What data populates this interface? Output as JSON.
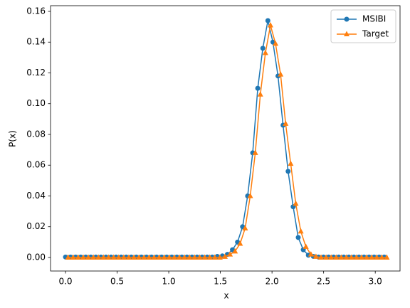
{
  "chart_data": {
    "type": "line",
    "xlabel": "x",
    "ylabel": "P(x)",
    "xlim": [
      -0.145,
      3.24
    ],
    "ylim": [
      -0.0088,
      0.1637
    ],
    "xticks": [
      {
        "value": 0,
        "label": "0.0"
      },
      0.5,
      {
        "value": 1,
        "label": "1.0"
      },
      1.5,
      {
        "value": 2,
        "label": "2.0"
      },
      2.5,
      {
        "value": 3,
        "label": "3.0"
      }
    ],
    "yticks": [
      {
        "value": 0,
        "label": "0.00"
      },
      0.02,
      0.04,
      0.06,
      0.08,
      {
        "value": 0.1,
        "label": "0.10"
      },
      0.12,
      0.14,
      0.16
    ],
    "legend": "upper right",
    "series": [
      {
        "name": "MSIBI",
        "color": "#1f77b4",
        "marker": "circle",
        "x": [
          0,
          0.049,
          0.098,
          0.147,
          0.196,
          0.245,
          0.294,
          0.343,
          0.392,
          0.441,
          0.49,
          0.539,
          0.588,
          0.637,
          0.686,
          0.735,
          0.784,
          0.833,
          0.882,
          0.931,
          0.98,
          1.029,
          1.078,
          1.127,
          1.176,
          1.225,
          1.274,
          1.323,
          1.372,
          1.421,
          1.47,
          1.519,
          1.568,
          1.617,
          1.666,
          1.715,
          1.764,
          1.813,
          1.862,
          1.911,
          1.96,
          2.009,
          2.058,
          2.107,
          2.156,
          2.205,
          2.254,
          2.303,
          2.352,
          2.401,
          2.45,
          2.499,
          2.548,
          2.597,
          2.646,
          2.695,
          2.744,
          2.793,
          2.842,
          2.891,
          2.94,
          2.989,
          3.038,
          3.087
        ],
        "values": [
          0.0003,
          0.0003,
          0.0003,
          0.0003,
          0.0003,
          0.0003,
          0.0003,
          0.0003,
          0.0003,
          0.0003,
          0.0003,
          0.0003,
          0.0003,
          0.0003,
          0.0003,
          0.0003,
          0.0003,
          0.0003,
          0.0003,
          0.0003,
          0.0003,
          0.0003,
          0.0003,
          0.0003,
          0.0003,
          0.0003,
          0.0003,
          0.0003,
          0.0003,
          0.0003,
          0.0007,
          0.001,
          0.002,
          0.005,
          0.01,
          0.02,
          0.04,
          0.068,
          0.11,
          0.136,
          0.154,
          0.14,
          0.118,
          0.086,
          0.056,
          0.033,
          0.013,
          0.005,
          0.0015,
          0.0007,
          0.0003,
          0.0003,
          0.0003,
          0.0003,
          0.0003,
          0.0003,
          0.0003,
          0.0003,
          0.0003,
          0.0003,
          0.0003,
          0.0003,
          0.0003,
          0.0003
        ]
      },
      {
        "name": "Target",
        "color": "#ff7f0e",
        "marker": "triangle",
        "x": [
          0.025,
          0.074,
          0.123,
          0.172,
          0.221,
          0.27,
          0.319,
          0.368,
          0.417,
          0.466,
          0.515,
          0.564,
          0.613,
          0.662,
          0.711,
          0.76,
          0.809,
          0.858,
          0.907,
          0.956,
          1.005,
          1.054,
          1.103,
          1.152,
          1.201,
          1.25,
          1.299,
          1.348,
          1.397,
          1.446,
          1.495,
          1.544,
          1.593,
          1.642,
          1.691,
          1.74,
          1.789,
          1.838,
          1.887,
          1.936,
          1.985,
          2.034,
          2.083,
          2.132,
          2.181,
          2.23,
          2.279,
          2.328,
          2.377,
          2.426,
          2.475,
          2.524,
          2.573,
          2.622,
          2.671,
          2.72,
          2.769,
          2.818,
          2.867,
          2.916,
          2.965,
          3.014,
          3.063,
          3.112
        ],
        "values": [
          0,
          0,
          0,
          0,
          0,
          0,
          0,
          0,
          0,
          0,
          0,
          0,
          0,
          0,
          0,
          0,
          0,
          0,
          0,
          0,
          0,
          0,
          0,
          0,
          0,
          0,
          0,
          0,
          0,
          0,
          0,
          0.0005,
          0.002,
          0.004,
          0.009,
          0.019,
          0.04,
          0.068,
          0.106,
          0.133,
          0.151,
          0.139,
          0.119,
          0.087,
          0.061,
          0.035,
          0.017,
          0.007,
          0.002,
          0.0005,
          0,
          0,
          0,
          0,
          0,
          0,
          0,
          0,
          0,
          0,
          0,
          0,
          0,
          0
        ]
      }
    ]
  }
}
